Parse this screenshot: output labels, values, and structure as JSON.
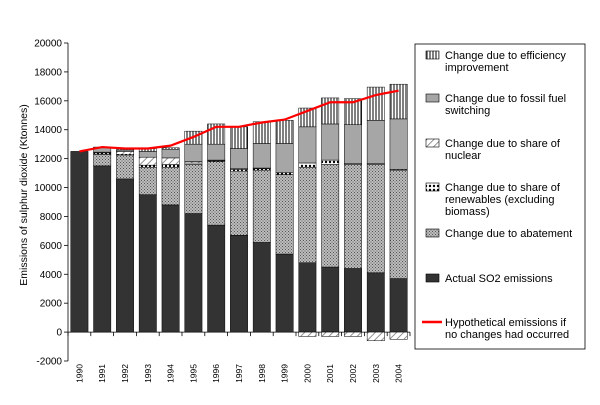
{
  "chart_data": {
    "type": "bar",
    "stacked": true,
    "title": "",
    "xlabel": "",
    "ylabel": "Emissions of sulphur dioxide (Ktonnes)",
    "ylim": [
      -2000,
      20000
    ],
    "yticks": [
      -2000,
      0,
      2000,
      4000,
      6000,
      8000,
      10000,
      12000,
      14000,
      16000,
      18000,
      20000
    ],
    "grid": false,
    "legend_position": "right",
    "categories": [
      "1990",
      "1991",
      "1992",
      "1993",
      "1994",
      "1995",
      "1996",
      "1997",
      "1998",
      "1999",
      "2000",
      "2001",
      "2002",
      "2003",
      "2004"
    ],
    "series": [
      {
        "name": "Actual SO2 emissions",
        "kind": "bar",
        "color": "#333333",
        "values": [
          12500,
          11500,
          10600,
          9500,
          8800,
          8200,
          7400,
          6700,
          6200,
          5400,
          4800,
          4500,
          4400,
          4100,
          3700
        ]
      },
      {
        "name": "Change due to abatement",
        "kind": "bar",
        "color": "#999999",
        "values": [
          0,
          800,
          1600,
          1900,
          2600,
          3400,
          4400,
          4400,
          5000,
          5500,
          6600,
          7100,
          7200,
          7500,
          7500
        ]
      },
      {
        "name": "Change due to share of renewables (excluding biomass)",
        "kind": "bar",
        "color": "#ffffff",
        "values": [
          0,
          100,
          100,
          150,
          200,
          100,
          50,
          150,
          100,
          150,
          300,
          300,
          50,
          50,
          50
        ]
      },
      {
        "name": "Change due to share of nuclear",
        "kind": "bar",
        "color": "#ffffff",
        "values": [
          0,
          50,
          200,
          550,
          450,
          100,
          50,
          50,
          50,
          0,
          -300,
          -300,
          -300,
          -600,
          -500
        ]
      },
      {
        "name": "Change due to fossil fuel switching",
        "kind": "bar",
        "color": "#aaaaaa",
        "values": [
          0,
          300,
          100,
          400,
          600,
          1200,
          1100,
          1400,
          1700,
          2000,
          2500,
          2500,
          2700,
          3000,
          3500
        ]
      },
      {
        "name": "Change due to efficiency improvement",
        "kind": "bar",
        "color": "#ffffff",
        "values": [
          0,
          50,
          100,
          200,
          100,
          900,
          1400,
          1500,
          1500,
          1600,
          1300,
          1800,
          1800,
          2300,
          2400
        ]
      },
      {
        "name": "Hypothetical emissions if no changes had occurred",
        "kind": "line",
        "color": "#ff0000",
        "values": [
          12500,
          12800,
          12700,
          12700,
          12900,
          13500,
          14200,
          14200,
          14500,
          14700,
          15300,
          15900,
          15900,
          16400,
          16700
        ]
      }
    ]
  }
}
